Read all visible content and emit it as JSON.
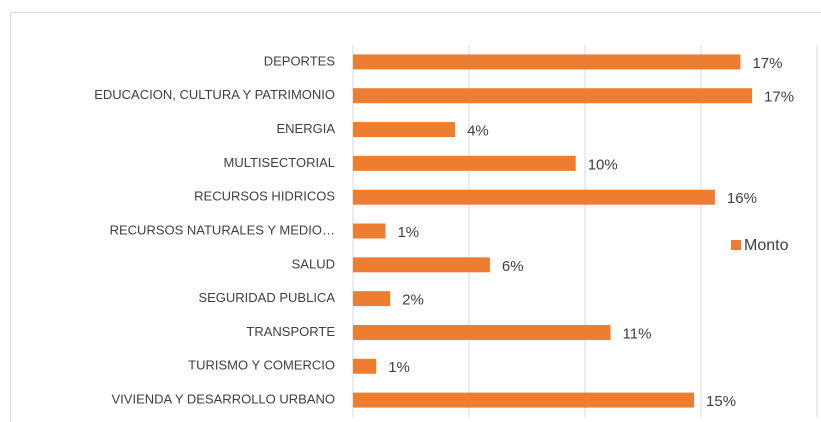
{
  "chart_data": {
    "type": "bar",
    "orientation": "horizontal",
    "categories": [
      "DEPORTES",
      "EDUCACION, CULTURA Y PATRIMONIO",
      "ENERGIA",
      "MULTISECTORIAL",
      "RECURSOS HIDRICOS",
      "RECURSOS NATURALES Y MEDIO…",
      "SALUD",
      "SEGURIDAD PUBLICA",
      "TRANSPORTE",
      "TURISMO Y COMERCIO",
      "VIVIENDA Y DESARROLLO URBANO"
    ],
    "series": [
      {
        "name": "Monto",
        "color": "#ed7d31",
        "values": [
          16.7,
          17.2,
          4.4,
          9.6,
          15.6,
          1.4,
          5.9,
          1.6,
          11.1,
          1.0,
          14.7
        ],
        "value_labels": [
          "17%",
          "17%",
          "4%",
          "10%",
          "16%",
          "1%",
          "6%",
          "2%",
          "11%",
          "1%",
          "15%"
        ]
      }
    ],
    "xlim": [
      0,
      20
    ],
    "xticks": [
      0,
      5,
      10,
      15,
      20
    ],
    "grid": true,
    "legend": "right"
  }
}
